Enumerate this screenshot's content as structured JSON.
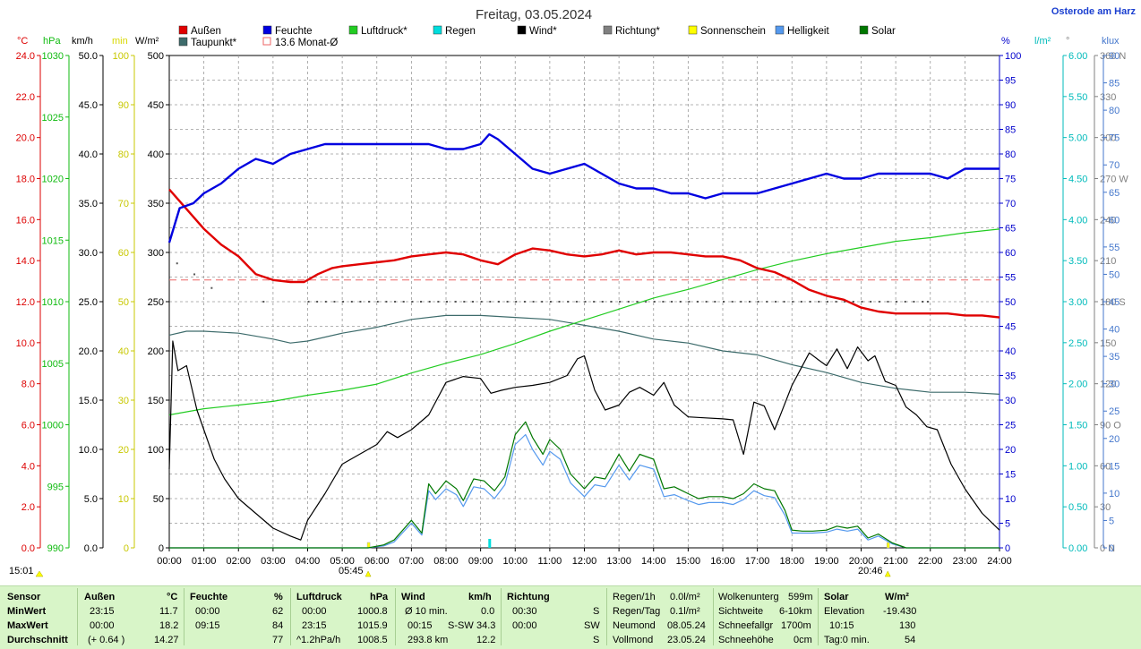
{
  "header": {
    "title": "Freitag, 03.05.2024",
    "station": "Osterode am Harz"
  },
  "legend": [
    {
      "label": "Außen",
      "color": "#e00000"
    },
    {
      "label": "Feuchte",
      "color": "#0000e0"
    },
    {
      "label": "Luftdruck*",
      "color": "#22cc22"
    },
    {
      "label": "Regen",
      "color": "#00dddd"
    },
    {
      "label": "Wind*",
      "color": "#000000"
    },
    {
      "label": "Richtung*",
      "color": "#808080"
    },
    {
      "label": "Sonnenschein",
      "color": "#ffff00"
    },
    {
      "label": "Helligkeit",
      "color": "#5599ee"
    },
    {
      "label": "Solar",
      "color": "#007700"
    },
    {
      "label": "Taupunkt*",
      "color": "#3d6b6b"
    },
    {
      "label": "13.6 Monat-Ø",
      "color": "#ee6666"
    }
  ],
  "axis_units": {
    "temp": "°C",
    "hpa": "hPa",
    "kmh": "km/h",
    "min": "min",
    "wm2": "W/m²",
    "pct": "%",
    "lm2": "l/m²",
    "deg": "°",
    "klux": "klux"
  },
  "sun": {
    "day_start": "15:01",
    "sunrise": "05:45",
    "sunset": "20:46"
  },
  "chart_data": {
    "type": "line",
    "title": "Freitag, 03.05.2024",
    "x_ticks": [
      "00:00",
      "01:00",
      "02:00",
      "03:00",
      "04:00",
      "05:00",
      "06:00",
      "07:00",
      "08:00",
      "09:00",
      "10:00",
      "11:00",
      "12:00",
      "13:00",
      "14:00",
      "15:00",
      "16:00",
      "17:00",
      "18:00",
      "19:00",
      "20:00",
      "21:00",
      "22:00",
      "23:00",
      "24:00"
    ],
    "xlim_hours": [
      0,
      24
    ],
    "grid": true,
    "axes": {
      "temp": {
        "unit": "°C",
        "min": 0,
        "max": 25,
        "ticks": [
          "0.0",
          "2.0",
          "4.0",
          "6.0",
          "8.0",
          "10.0",
          "12.0",
          "14.0",
          "16.0",
          "18.0",
          "20.0",
          "22.0",
          "24.0"
        ],
        "color": "#dd0000"
      },
      "hpa": {
        "unit": "hPa",
        "min": 990,
        "max": 1030,
        "ticks": [
          "990",
          "995",
          "1000",
          "1005",
          "1010",
          "1015",
          "1020",
          "1025",
          "1030"
        ],
        "color": "#11bb11"
      },
      "kmh": {
        "unit": "km/h",
        "min": 0,
        "max": 50,
        "ticks": [
          "0.0",
          "5.0",
          "10.0",
          "15.0",
          "20.0",
          "25.0",
          "30.0",
          "35.0",
          "40.0",
          "45.0",
          "50.0"
        ],
        "color": "#000000"
      },
      "min": {
        "unit": "min",
        "min": 0,
        "max": 100,
        "ticks": [
          "0",
          "10",
          "20",
          "30",
          "40",
          "50",
          "60",
          "70",
          "80",
          "90",
          "100"
        ],
        "color": "#d8d800"
      },
      "wm2": {
        "unit": "W/m²",
        "min": 0,
        "max": 500,
        "ticks": [
          "0",
          "50",
          "100",
          "150",
          "200",
          "250",
          "300",
          "350",
          "400",
          "450",
          "500"
        ],
        "color": "#000000"
      },
      "pct": {
        "unit": "%",
        "min": 0,
        "max": 100,
        "ticks": [
          "0",
          "5",
          "10",
          "15",
          "20",
          "25",
          "30",
          "35",
          "40",
          "45",
          "50",
          "55",
          "60",
          "65",
          "70",
          "75",
          "80",
          "85",
          "90",
          "95",
          "100"
        ],
        "color": "#0000cc"
      },
      "lm2": {
        "unit": "l/m²",
        "min": 0,
        "max": 6,
        "ticks": [
          "0.00",
          "0.50",
          "1.00",
          "1.50",
          "2.00",
          "2.50",
          "3.00",
          "3.50",
          "4.00",
          "4.50",
          "5.00",
          "5.50",
          "6.00"
        ],
        "color": "#00bbbb"
      },
      "deg": {
        "unit": "°",
        "min": 0,
        "max": 360,
        "ticks": [
          "0 N",
          "30",
          "60",
          "90 O",
          "120",
          "150",
          "180 S",
          "210",
          "240",
          "270 W",
          "300",
          "330",
          "360 N"
        ],
        "color": "#808080"
      },
      "klux": {
        "unit": "klux",
        "min": 0,
        "max": 90,
        "ticks": [
          "0",
          "5",
          "10",
          "15",
          "20",
          "25",
          "30",
          "35",
          "40",
          "45",
          "50",
          "55",
          "60",
          "65",
          "70",
          "75",
          "80",
          "85",
          "90"
        ],
        "color": "#4477cc"
      }
    },
    "series": [
      {
        "name": "Außen",
        "axis": "temp",
        "color": "#e00000",
        "x": [
          0,
          0.5,
          1,
          1.5,
          2,
          2.5,
          3,
          3.5,
          3.9,
          4.3,
          4.7,
          5,
          5.5,
          6,
          6.5,
          7,
          7.5,
          8,
          8.5,
          9,
          9.5,
          10,
          10.5,
          11,
          11.5,
          12,
          12.5,
          13,
          13.5,
          14,
          14.5,
          15,
          15.5,
          16,
          16.5,
          17,
          17.5,
          18,
          18.5,
          19,
          19.5,
          20,
          20.5,
          21,
          21.5,
          22,
          22.5,
          23,
          23.5,
          24
        ],
        "y": [
          18.2,
          17.2,
          16.2,
          15.4,
          14.8,
          13.9,
          13.6,
          13.5,
          13.5,
          13.9,
          14.2,
          14.3,
          14.4,
          14.5,
          14.6,
          14.8,
          14.9,
          15.0,
          14.9,
          14.6,
          14.4,
          14.9,
          15.2,
          15.1,
          14.9,
          14.8,
          14.9,
          15.1,
          14.9,
          15.0,
          15.0,
          14.9,
          14.8,
          14.8,
          14.6,
          14.2,
          14.0,
          13.6,
          13.1,
          12.8,
          12.6,
          12.2,
          12.0,
          11.9,
          11.9,
          11.9,
          11.9,
          11.8,
          11.8,
          11.7
        ]
      },
      {
        "name": "Feuchte",
        "axis": "pct",
        "color": "#0000e0",
        "x": [
          0,
          0.3,
          0.7,
          1,
          1.5,
          2,
          2.5,
          3,
          3.5,
          4,
          4.5,
          5,
          5.5,
          6,
          6.5,
          7,
          7.5,
          8,
          8.5,
          9,
          9.25,
          9.5,
          10,
          10.5,
          11,
          11.5,
          12,
          12.5,
          13,
          13.5,
          14,
          14.5,
          15,
          15.5,
          16,
          16.5,
          17,
          17.5,
          18,
          18.5,
          19,
          19.5,
          20,
          20.5,
          21,
          21.5,
          22,
          22.5,
          23,
          23.5,
          24
        ],
        "y": [
          62,
          69,
          70,
          72,
          74,
          77,
          79,
          78,
          80,
          81,
          82,
          82,
          82,
          82,
          82,
          82,
          82,
          81,
          81,
          82,
          84,
          83,
          80,
          77,
          76,
          77,
          78,
          76,
          74,
          73,
          73,
          72,
          72,
          71,
          72,
          72,
          72,
          73,
          74,
          75,
          76,
          75,
          75,
          76,
          76,
          76,
          76,
          75,
          77,
          77,
          77
        ]
      },
      {
        "name": "Luftdruck*",
        "axis": "hpa",
        "color": "#22cc22",
        "x": [
          0,
          1,
          2,
          3,
          4,
          5,
          6,
          7,
          8,
          9,
          10,
          11,
          12,
          13,
          14,
          15,
          16,
          17,
          18,
          19,
          20,
          21,
          22,
          23,
          24
        ],
        "y": [
          1000.8,
          1001.3,
          1001.6,
          1001.9,
          1002.4,
          1002.8,
          1003.3,
          1004.2,
          1005.0,
          1005.7,
          1006.6,
          1007.6,
          1008.5,
          1009.4,
          1010.3,
          1011.0,
          1011.8,
          1012.6,
          1013.3,
          1013.9,
          1014.4,
          1014.9,
          1015.2,
          1015.6,
          1015.9
        ]
      },
      {
        "name": "Taupunkt*",
        "axis": "temp",
        "color": "#3d6b6b",
        "x": [
          0,
          0.5,
          1,
          2,
          3,
          3.5,
          4,
          5,
          6,
          7,
          8,
          9,
          10,
          11,
          12,
          13,
          14,
          15,
          16,
          17,
          18,
          19,
          20,
          21,
          22,
          23,
          24
        ],
        "y": [
          10.8,
          11.0,
          11.0,
          10.9,
          10.6,
          10.4,
          10.5,
          10.9,
          11.2,
          11.6,
          11.8,
          11.8,
          11.7,
          11.6,
          11.3,
          11.0,
          10.6,
          10.4,
          10.0,
          9.8,
          9.3,
          8.9,
          8.4,
          8.1,
          7.9,
          7.9,
          7.8
        ]
      },
      {
        "name": "Wind*",
        "axis": "kmh",
        "color": "#000000",
        "x": [
          0,
          0.1,
          0.25,
          0.5,
          0.8,
          1,
          1.3,
          1.6,
          2,
          2.5,
          3,
          3.5,
          3.8,
          4,
          4.5,
          5,
          5.5,
          6,
          6.3,
          6.6,
          7,
          7.5,
          8,
          8.5,
          9,
          9.3,
          9.6,
          10,
          10.5,
          11,
          11.5,
          11.8,
          12,
          12.3,
          12.6,
          13,
          13.3,
          13.6,
          14,
          14.3,
          14.6,
          15,
          15.5,
          16,
          16.3,
          16.6,
          16.9,
          17.2,
          17.5,
          17.7,
          18,
          18.5,
          18.8,
          19,
          19.3,
          19.6,
          19.9,
          20.2,
          20.4,
          20.7,
          21,
          21.3,
          21.6,
          21.9,
          22.2,
          22.6,
          23,
          23.5,
          24
        ],
        "y": [
          8,
          21,
          18,
          18.5,
          14,
          12,
          9,
          7,
          5,
          3.5,
          2,
          1.2,
          0.8,
          2.8,
          5.5,
          8.5,
          9.5,
          10.5,
          11.8,
          11.2,
          12,
          13.5,
          16.8,
          17.4,
          17.2,
          15.7,
          16,
          16.3,
          16.5,
          16.8,
          17.5,
          19.2,
          19.5,
          16,
          14,
          14.5,
          15.8,
          16.3,
          15.5,
          16.8,
          14.5,
          13.3,
          13.2,
          13.1,
          13.0,
          9.5,
          14.8,
          14.4,
          12,
          13.8,
          16.5,
          19.8,
          19,
          18.5,
          20.2,
          18.2,
          20.4,
          19,
          19.5,
          16.9,
          16.5,
          14.3,
          13.5,
          12.3,
          12.0,
          8.5,
          6.0,
          3.5,
          1.8
        ]
      },
      {
        "name": "Solar",
        "axis": "wm2",
        "color": "#007700",
        "x": [
          0,
          5.75,
          6.2,
          6.5,
          7,
          7.3,
          7.5,
          7.7,
          8,
          8.3,
          8.5,
          8.8,
          9.1,
          9.4,
          9.7,
          10,
          10.3,
          10.5,
          10.8,
          11,
          11.3,
          11.6,
          12,
          12.3,
          12.6,
          13,
          13.3,
          13.6,
          14,
          14.3,
          14.6,
          15,
          15.3,
          15.6,
          16,
          16.3,
          16.6,
          16.9,
          17.2,
          17.5,
          17.8,
          18,
          18.3,
          18.6,
          19,
          19.3,
          19.6,
          19.9,
          20.2,
          20.5,
          20.9,
          21.3,
          24
        ],
        "y": [
          0,
          0,
          3,
          8,
          28,
          15,
          65,
          55,
          68,
          60,
          48,
          70,
          68,
          58,
          72,
          115,
          128,
          112,
          95,
          110,
          100,
          75,
          60,
          72,
          70,
          95,
          78,
          95,
          90,
          60,
          62,
          55,
          50,
          52,
          52,
          50,
          55,
          65,
          60,
          58,
          38,
          18,
          17,
          17,
          18,
          22,
          20,
          22,
          10,
          14,
          5,
          0,
          0
        ]
      },
      {
        "name": "Helligkeit",
        "axis": "wm2",
        "color": "#5599ee",
        "x": [
          0,
          5.75,
          6.2,
          6.5,
          7,
          7.3,
          7.5,
          7.7,
          8,
          8.3,
          8.5,
          8.8,
          9.1,
          9.4,
          9.7,
          10,
          10.3,
          10.5,
          10.8,
          11,
          11.3,
          11.6,
          12,
          12.3,
          12.6,
          13,
          13.3,
          13.6,
          14,
          14.3,
          14.6,
          15,
          15.3,
          15.6,
          16,
          16.3,
          16.6,
          16.9,
          17.2,
          17.5,
          17.8,
          18,
          18.3,
          18.6,
          19,
          19.3,
          19.6,
          19.9,
          20.2,
          20.5,
          20.9,
          21.3,
          24
        ],
        "y": [
          0,
          0,
          2,
          6,
          25,
          13,
          58,
          49,
          60,
          54,
          42,
          62,
          60,
          50,
          64,
          105,
          115,
          100,
          84,
          98,
          90,
          66,
          52,
          64,
          62,
          84,
          69,
          84,
          80,
          52,
          54,
          48,
          44,
          46,
          46,
          44,
          49,
          58,
          53,
          51,
          33,
          15,
          15,
          15,
          16,
          19,
          17,
          19,
          8,
          12,
          4,
          0,
          0
        ]
      }
    ],
    "rain_marks_hours": [
      9.25
    ],
    "sunshine_marks_hours": [
      5.75,
      20.77
    ],
    "monthly_avg_temp": 13.6,
    "direction_points_hours_deg": [
      [
        0.2,
        208
      ],
      [
        0.7,
        200
      ],
      [
        1.2,
        190
      ],
      [
        2.7,
        180
      ],
      [
        4,
        180
      ],
      [
        5,
        180
      ],
      [
        6,
        180
      ],
      [
        7,
        180
      ],
      [
        8,
        180
      ],
      [
        9,
        180
      ],
      [
        10,
        180
      ],
      [
        11,
        180
      ],
      [
        12,
        180
      ],
      [
        13,
        180
      ],
      [
        14,
        180
      ],
      [
        15,
        180
      ],
      [
        16,
        180
      ],
      [
        17,
        180
      ],
      [
        18,
        180
      ],
      [
        19,
        180
      ],
      [
        20,
        180
      ],
      [
        21,
        180
      ],
      [
        21.9,
        180
      ]
    ]
  },
  "stats": {
    "headers": {
      "sensor": "Sensor",
      "aussen": "Außen",
      "aussen_unit": "°C",
      "feuchte": "Feuchte",
      "feuchte_unit": "%",
      "luftdruck": "Luftdruck",
      "luftdruck_unit": "hPa",
      "wind": "Wind",
      "wind_unit": "km/h",
      "richtung": "Richtung"
    },
    "labels": {
      "min": "MinWert",
      "max": "MaxWert",
      "avg": "Durchschnitt"
    },
    "aussen": {
      "min_time": "23:15",
      "min": "11.7",
      "max_time": "00:00",
      "max": "18.2",
      "avg_note": "(+ 0.64 )",
      "avg": "14.27"
    },
    "feuchte": {
      "min_time": "00:00",
      "min": "62",
      "max_time": "09:15",
      "max": "84",
      "avg": "77"
    },
    "luftdruck": {
      "min_time": "00:00",
      "min": "1000.8",
      "max_time": "23:15",
      "max": "1015.9",
      "avg_note": "^1.2hPa/h",
      "avg": "1008.5"
    },
    "wind": {
      "r1_label": "Ø 10 min.",
      "r1_val": "0.0",
      "r2_time": "00:15",
      "r2_dir": "S-SW",
      "r2_val": "34.3",
      "r3_label": "293.8 km",
      "r3_val": "12.2"
    },
    "richtung": {
      "r1_time": "00:30",
      "r1_dir": "S",
      "r2_time": "00:00",
      "r2_dir": "SW",
      "r3_dir": "S"
    },
    "rain": [
      [
        "Regen/1h",
        "0.0l/m²"
      ],
      [
        "Regen/Tag",
        "0.1l/m²"
      ],
      [
        "Neumond",
        "08.05.24"
      ],
      [
        "Vollmond",
        "23.05.24"
      ]
    ],
    "cloud": [
      [
        "Wolkenunterg",
        "599m"
      ],
      [
        "Sichtweite",
        "6-10km"
      ],
      [
        "Schneefallgr",
        "1700m"
      ],
      [
        "Schneehöhe",
        "0cm"
      ]
    ],
    "solar": {
      "header": "Solar",
      "unit": "W/m²",
      "r1_label": "Elevation",
      "r1_val": "-19.430",
      "r2_time": "10:15",
      "r2_val": "130",
      "r3_label": "Tag:0 min.",
      "r3_val": "54"
    }
  }
}
